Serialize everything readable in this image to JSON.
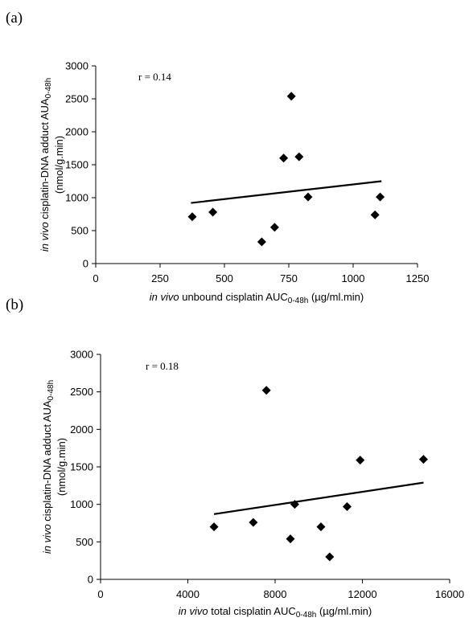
{
  "chart_data": [
    {
      "panel_label": "(a)",
      "type": "scatter",
      "annotation": "r = 0.14",
      "xlabel": {
        "prefix": "in vivo",
        "main": " unbound cisplatin AUC",
        "sub": "0-48h",
        "suffix": " (µg/ml.min)"
      },
      "ylabel": {
        "prefix": "in vivo",
        "main": " cisplatin-DNA adduct AUA",
        "sub": "0-48h",
        "line2": "(nmol/g.min)"
      },
      "xlim": [
        0,
        1250
      ],
      "ylim": [
        0,
        3000
      ],
      "xticks": [
        0,
        250,
        500,
        750,
        1000,
        1250
      ],
      "yticks": [
        0,
        500,
        1000,
        1500,
        2000,
        2500,
        3000
      ],
      "points": [
        {
          "x": 375,
          "y": 710
        },
        {
          "x": 455,
          "y": 780
        },
        {
          "x": 645,
          "y": 330
        },
        {
          "x": 695,
          "y": 550
        },
        {
          "x": 730,
          "y": 1600
        },
        {
          "x": 760,
          "y": 2540
        },
        {
          "x": 790,
          "y": 1620
        },
        {
          "x": 825,
          "y": 1010
        },
        {
          "x": 1085,
          "y": 740
        },
        {
          "x": 1105,
          "y": 1010
        }
      ],
      "trendline": {
        "x": [
          370,
          1110
        ],
        "y": [
          920,
          1250
        ]
      }
    },
    {
      "panel_label": "(b)",
      "type": "scatter",
      "annotation": "r = 0.18",
      "xlabel": {
        "prefix": "in vivo",
        "main": " total cisplatin AUC",
        "sub": "0-48h",
        "suffix": " (µg/ml.min)"
      },
      "ylabel": {
        "prefix": "in vivo",
        "main": " cisplatin-DNA adduct AUA",
        "sub": "0-48h",
        "line2": "(nmol/g.min)"
      },
      "xlim": [
        0,
        16000
      ],
      "ylim": [
        0,
        3000
      ],
      "xticks": [
        0,
        4000,
        8000,
        12000,
        16000
      ],
      "yticks": [
        0,
        500,
        1000,
        1500,
        2000,
        2500,
        3000
      ],
      "points": [
        {
          "x": 5200,
          "y": 700
        },
        {
          "x": 7000,
          "y": 760
        },
        {
          "x": 7600,
          "y": 2520
        },
        {
          "x": 8700,
          "y": 540
        },
        {
          "x": 8900,
          "y": 1000
        },
        {
          "x": 10100,
          "y": 700
        },
        {
          "x": 10500,
          "y": 300
        },
        {
          "x": 11300,
          "y": 970
        },
        {
          "x": 11900,
          "y": 1590
        },
        {
          "x": 14800,
          "y": 1600
        }
      ],
      "trendline": {
        "x": [
          5200,
          14800
        ],
        "y": [
          870,
          1290
        ]
      }
    }
  ]
}
